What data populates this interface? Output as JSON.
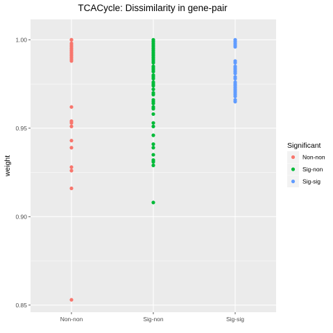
{
  "chart_data": {
    "type": "scatter",
    "title": "TCACycle: Dissimilarity in gene-pair",
    "xlabel": "",
    "ylabel": "weight",
    "ylim": [
      0.846,
      1.0115
    ],
    "y_ticks": [
      0.85,
      0.9,
      0.95,
      1.0
    ],
    "y_tick_labels": [
      "0.85",
      "0.90",
      "0.95",
      "1.00"
    ],
    "categories": [
      "Non-non",
      "Sig-non",
      "Sig-sig"
    ],
    "grid": true,
    "legend": {
      "title": "Significant",
      "position": "right",
      "entries": [
        "Non-non",
        "Sig-non",
        "Sig-sig"
      ]
    },
    "colors": {
      "Non-non": "#F8766D",
      "Sig-non": "#00BA38",
      "Sig-sig": "#619CFF",
      "panel_bg": "#EBEBEB",
      "grid": "#FFFFFF"
    },
    "series": [
      {
        "name": "Non-non",
        "x": "Non-non",
        "values": [
          1.0,
          1.0,
          0.998,
          0.997,
          0.996,
          0.995,
          0.994,
          0.993,
          0.992,
          0.991,
          0.99,
          0.989,
          0.988,
          0.962,
          0.954,
          0.953,
          0.951,
          0.943,
          0.939,
          0.928,
          0.926,
          0.916,
          0.853
        ]
      },
      {
        "name": "Sig-non",
        "x": "Sig-non",
        "values": [
          1.0,
          0.999,
          0.998,
          0.997,
          0.996,
          0.995,
          0.994,
          0.993,
          0.992,
          0.991,
          0.99,
          0.989,
          0.988,
          0.987,
          0.985,
          0.984,
          0.983,
          0.982,
          0.98,
          0.979,
          0.978,
          0.976,
          0.975,
          0.974,
          0.972,
          0.97,
          0.969,
          0.966,
          0.965,
          0.964,
          0.962,
          0.961,
          0.958,
          0.953,
          0.951,
          0.946,
          0.941,
          0.939,
          0.935,
          0.932,
          0.931,
          0.929,
          0.908
        ]
      },
      {
        "name": "Sig-sig",
        "x": "Sig-sig",
        "values": [
          1.0,
          0.999,
          0.998,
          0.997,
          0.996,
          0.988,
          0.987,
          0.985,
          0.984,
          0.983,
          0.982,
          0.981,
          0.979,
          0.978,
          0.976,
          0.975,
          0.974,
          0.973,
          0.972,
          0.971,
          0.97,
          0.969,
          0.968,
          0.966,
          0.965
        ]
      }
    ]
  }
}
